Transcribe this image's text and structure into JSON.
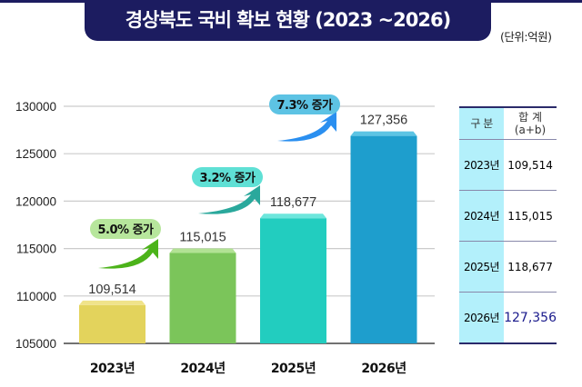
{
  "title": "경상북도 국비 확보 현황 (2023 ~2026)",
  "unit": "(단위:억원)",
  "chart_data": {
    "type": "bar",
    "title": "경상북도 국비 확보 현황 (2023 ~2026)",
    "categories": [
      "2023년",
      "2024년",
      "2025년",
      "2026년"
    ],
    "values": [
      109514,
      115015,
      118677,
      127356
    ],
    "data_labels": [
      "109,514",
      "115,015",
      "118,677",
      "127,356"
    ],
    "ylim": [
      105000,
      130000
    ],
    "yticks": [
      "105000",
      "110000",
      "115000",
      "120000",
      "125000",
      "130000"
    ],
    "grid": true,
    "bar_colors": [
      "#e3d35c",
      "#7bc55a",
      "#22cdbf",
      "#1e9ecd"
    ],
    "annotations": [
      {
        "text": "5.0% 증가",
        "color": "#b7e69c",
        "arrow_color": "#4cb31a"
      },
      {
        "text": "3.2% 증가",
        "color": "#5fe0d5",
        "arrow_color": "#2aa89c"
      },
      {
        "text": "7.3% 증가",
        "color": "#5dc3e4",
        "arrow_color": "#2a8ff0"
      }
    ]
  },
  "table": {
    "header": [
      "구 분",
      "합 계",
      "(a+b)"
    ],
    "rows": [
      {
        "year": "2023년",
        "total": "109,514"
      },
      {
        "year": "2024년",
        "total": "115,015"
      },
      {
        "year": "2025년",
        "total": "118,677"
      },
      {
        "year": "2026년",
        "total": "127,356"
      }
    ],
    "highlight_color": "#1a1a8c"
  }
}
